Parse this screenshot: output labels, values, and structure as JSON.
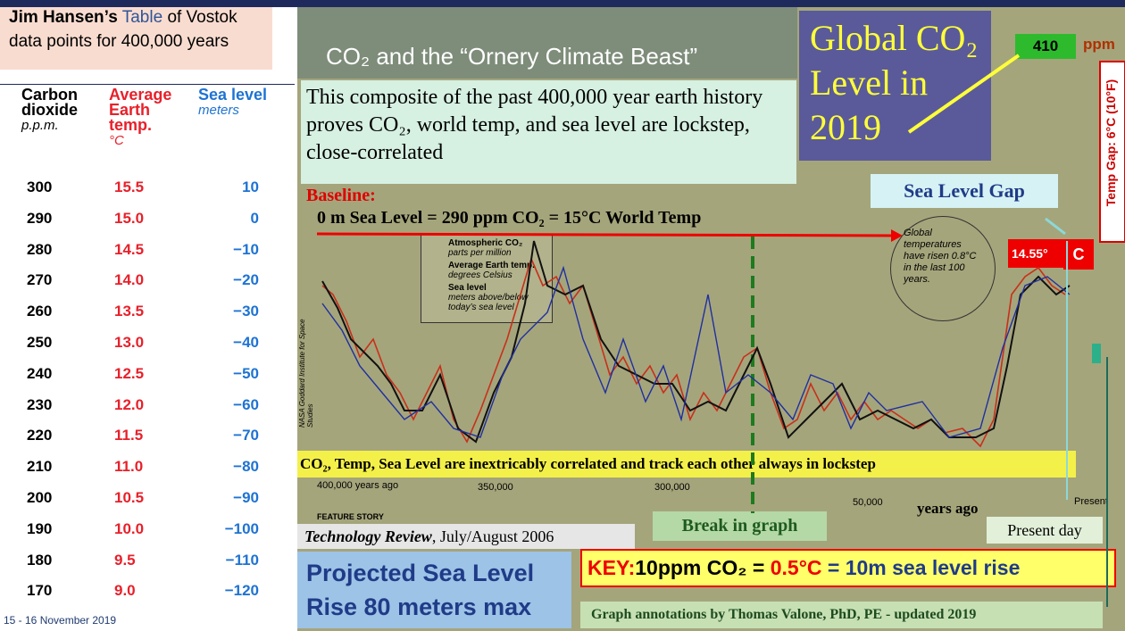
{
  "header": {
    "bold": "Jim Hansen’s",
    "link": "Table",
    "rest": "of Vostok data points for 400,000 years"
  },
  "table": {
    "columns": [
      {
        "name": "Carbon dioxide",
        "unit": "p.p.m."
      },
      {
        "name": "Average Earth temp.",
        "unit": "°C"
      },
      {
        "name": "Sea level",
        "unit": "meters"
      }
    ],
    "rows": [
      [
        "300",
        "15.5",
        "10"
      ],
      [
        "290",
        "15.0",
        "0"
      ],
      [
        "280",
        "14.5",
        "−10"
      ],
      [
        "270",
        "14.0",
        "−20"
      ],
      [
        "260",
        "13.5",
        "−30"
      ],
      [
        "250",
        "13.0",
        "−40"
      ],
      [
        "240",
        "12.5",
        "−50"
      ],
      [
        "230",
        "12.0",
        "−60"
      ],
      [
        "220",
        "11.5",
        "−70"
      ],
      [
        "210",
        "11.0",
        "−80"
      ],
      [
        "200",
        "10.5",
        "−90"
      ],
      [
        "190",
        "10.0",
        "−100"
      ],
      [
        "180",
        "9.5",
        "−110"
      ],
      [
        "170",
        "9.0",
        "−120"
      ]
    ]
  },
  "footer_date": "15 - 16 November 2019",
  "slide": {
    "title": "CO₂ and the “Ornery Climate Beast”",
    "composite": "This composite of the past 400,000 year earth history proves CO₂, world temp, and sea level are lockstep, close-correlated",
    "global_co2": "Global CO₂ Level in 2019",
    "co2_value": "410",
    "co2_unit": "ppm",
    "temp_gap": "Temp Gap: 6°C (10°F)",
    "sea_level_gap": "Sea Level Gap",
    "temp_now": "14.55°",
    "temp_unit": "C",
    "baseline_label": "Baseline:",
    "baseline": "0 m Sea Level = 290 ppm CO₂ = 15°C World Temp",
    "legend": [
      {
        "name": "Atmospheric CO₂",
        "note": "parts per million"
      },
      {
        "name": "Average Earth temp.",
        "note": "degrees Celsius"
      },
      {
        "name": "Sea level",
        "note": "meters above/below today’s sea level"
      }
    ],
    "inset": "Global temperatures have risen 0.8°C in the last 100 years.",
    "credit": "NASA Goddard Institute for Space Studies",
    "banner": "CO₂, Temp, Sea Level are inextricably correlated and track each other always in lockstep",
    "x_labels": [
      "400,000 years ago",
      "350,000",
      "300,000",
      "50,000",
      "years ago",
      "Present"
    ],
    "feature": "FEATURE STORY",
    "break": "Break in graph",
    "present_day": "Present day",
    "source_title": "Technology Review",
    "source_date": ", July/August 2006",
    "projected": "Projected Sea Level Rise 80 meters max",
    "key_label": "KEY:",
    "key_co2": "10ppm CO₂ =",
    "key_temp": "0.5°C",
    "key_sea": "= 10m sea level rise",
    "annotation": "Graph annotations by Thomas Valone, PhD, PE  - updated 2019"
  }
}
